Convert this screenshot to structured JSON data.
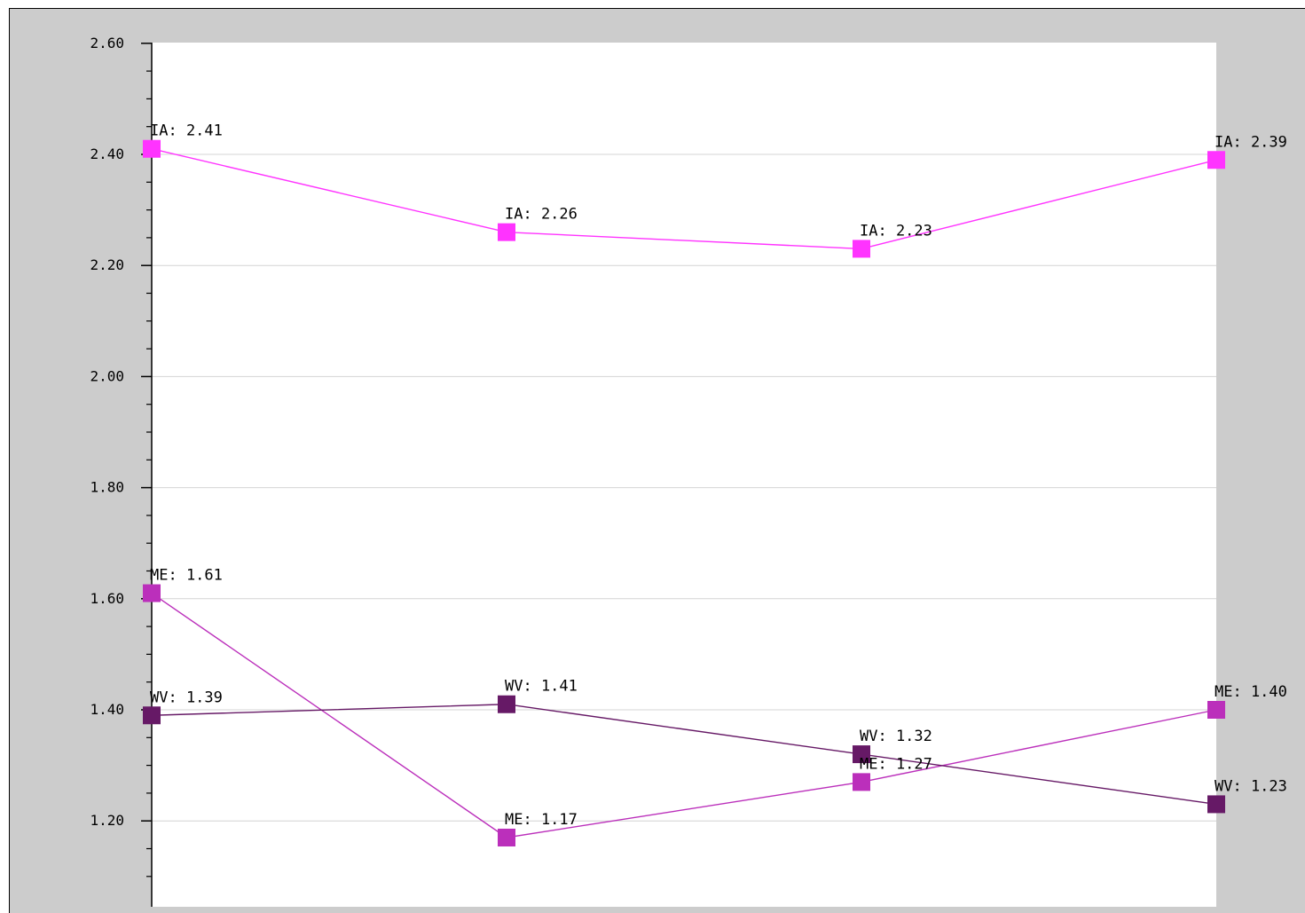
{
  "chart_data": {
    "type": "line",
    "title": "",
    "xlabel": "",
    "ylabel": "",
    "categories": [
      "",
      "",
      "",
      ""
    ],
    "ylim": [
      1.1,
      2.6
    ],
    "y_ticks": [
      1.2,
      1.4,
      1.6,
      1.8,
      2.0,
      2.2,
      2.4,
      2.6
    ],
    "y_tick_labels": [
      "1.20",
      "1.40",
      "1.60",
      "1.80",
      "2.00",
      "2.20",
      "2.40",
      "2.60"
    ],
    "grid": true,
    "legend": "none",
    "series": [
      {
        "name": "IA",
        "color": "#ff33ff",
        "values": [
          2.41,
          2.26,
          2.23,
          2.39
        ],
        "labels": [
          "IA: 2.41",
          "IA: 2.26",
          "IA: 2.23",
          "IA: 2.39"
        ]
      },
      {
        "name": "ME",
        "color": "#bb2fbb",
        "values": [
          1.61,
          1.17,
          1.27,
          1.4
        ],
        "labels": [
          "ME: 1.61",
          "ME: 1.17",
          "ME: 1.27",
          "ME: 1.40"
        ]
      },
      {
        "name": "WV",
        "color": "#661966",
        "values": [
          1.39,
          1.41,
          1.32,
          1.23
        ],
        "labels": [
          "WV: 1.39",
          "WV: 1.41",
          "WV: 1.32",
          "WV: 1.23"
        ]
      }
    ]
  }
}
